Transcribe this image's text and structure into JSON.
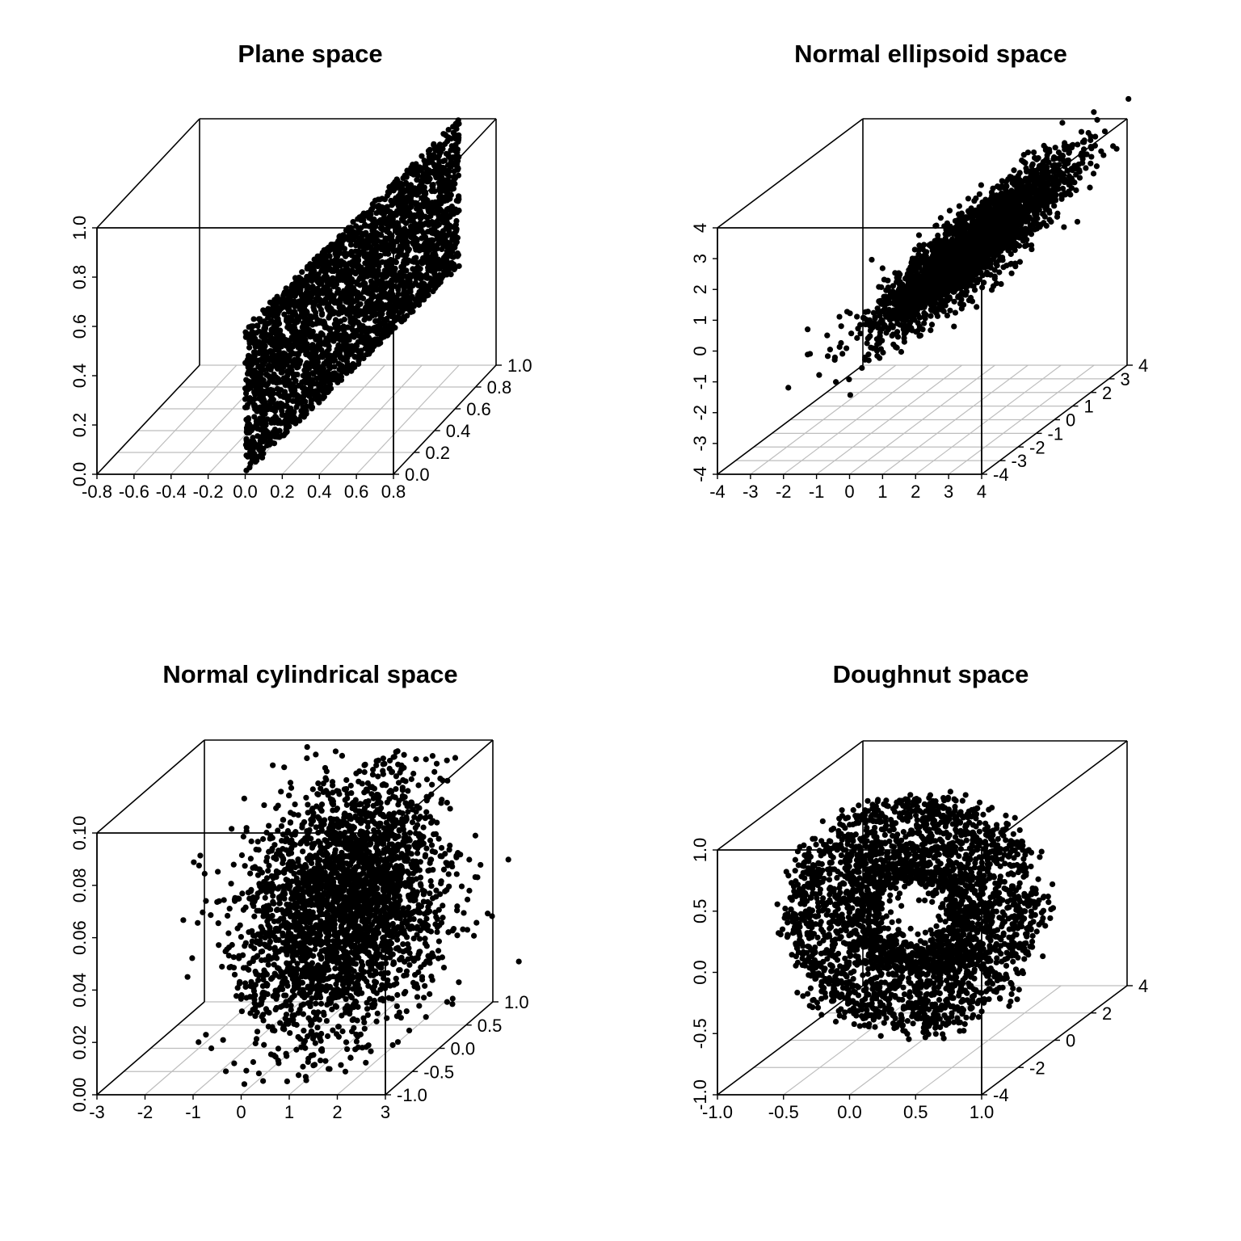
{
  "chart_data": [
    {
      "type": "scatter",
      "title": "Plane space",
      "xlim": [
        -0.8,
        0.8
      ],
      "ylim": [
        0.0,
        1.0
      ],
      "zlim": [
        0.0,
        1.0
      ],
      "x_ticks": [
        "-0.8",
        "-0.6",
        "-0.4",
        "-0.2",
        "0.0",
        "0.2",
        "0.4",
        "0.6",
        "0.8"
      ],
      "y_ticks": [
        "0.0",
        "0.2",
        "0.4",
        "0.6",
        "0.8",
        "1.0"
      ],
      "z_ticks": [
        "0.0",
        "0.2",
        "0.4",
        "0.6",
        "0.8",
        "1.0"
      ],
      "shape": "plane",
      "grid": true,
      "point_color": "#000000",
      "n_points": 3000
    },
    {
      "type": "scatter",
      "title": "Normal ellipsoid space",
      "xlim": [
        -4,
        4
      ],
      "ylim": [
        -4,
        4
      ],
      "zlim": [
        -4,
        4
      ],
      "x_ticks": [
        "-4",
        "-3",
        "-2",
        "-1",
        "0",
        "1",
        "2",
        "3",
        "4"
      ],
      "y_ticks": [
        "-4",
        "-3",
        "-2",
        "-1",
        "0",
        "1",
        "2",
        "3",
        "4"
      ],
      "z_ticks": [
        "-4",
        "-3",
        "-2",
        "-1",
        "0",
        "1",
        "2",
        "3",
        "4"
      ],
      "shape": "ellipsoid",
      "grid": true,
      "point_color": "#000000",
      "n_points": 3000
    },
    {
      "type": "scatter",
      "title": "Normal cylindrical space",
      "xlim": [
        -3,
        3
      ],
      "ylim": [
        -1.0,
        1.0
      ],
      "zlim": [
        0.0,
        0.1
      ],
      "x_ticks": [
        "-3",
        "-2",
        "-1",
        "0",
        "1",
        "2",
        "3"
      ],
      "y_ticks": [
        "-1.0",
        "-0.5",
        "0.0",
        "0.5",
        "1.0"
      ],
      "z_ticks": [
        "0.00",
        "0.02",
        "0.04",
        "0.06",
        "0.08",
        "0.10"
      ],
      "shape": "cylinder",
      "grid": true,
      "point_color": "#000000",
      "n_points": 3000
    },
    {
      "type": "scatter",
      "title": "Doughnut space",
      "xlim": [
        -1.0,
        1.0
      ],
      "ylim": [
        -4,
        4
      ],
      "zlim": [
        -1.0,
        1.0
      ],
      "x_ticks": [
        "-1.0",
        "-0.5",
        "0.0",
        "0.5",
        "1.0"
      ],
      "y_ticks": [
        "-4",
        "-2",
        "0",
        "2",
        "4"
      ],
      "z_ticks": [
        "-1.0",
        "-0.5",
        "0.0",
        "0.5",
        "1.0"
      ],
      "shape": "torus",
      "grid": true,
      "point_color": "#000000",
      "n_points": 3000
    }
  ]
}
